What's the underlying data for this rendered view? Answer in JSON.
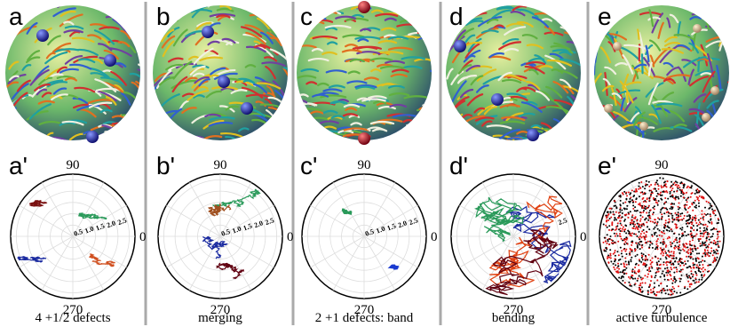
{
  "panels": [
    {
      "label": "a",
      "polar_label": "a'",
      "caption": "4 +1/2 defects",
      "angle_labels": [
        "90",
        "0",
        "270"
      ],
      "radial_labels": [
        "0.5",
        "1.0",
        "1.5",
        "2.0",
        "2.5"
      ]
    },
    {
      "label": "b",
      "polar_label": "b'",
      "caption": "merging",
      "angle_labels": [
        "90",
        "0",
        "270"
      ],
      "radial_labels": [
        "0.5",
        "1.0",
        "1.5",
        "2.0",
        "2.5"
      ]
    },
    {
      "label": "c",
      "polar_label": "c'",
      "caption": "2 +1 defects: band",
      "angle_labels": [
        "90",
        "0",
        "270"
      ],
      "radial_labels": [
        "0.5",
        "1.0",
        "1.5",
        "2.0",
        "2.5"
      ]
    },
    {
      "label": "d",
      "polar_label": "d'",
      "caption": "bending",
      "angle_labels": [
        "0",
        "270"
      ],
      "radial_labels": [
        "2.5"
      ]
    },
    {
      "label": "e",
      "polar_label": "e'",
      "caption": "active turbulence",
      "angle_labels": [
        "90",
        "270"
      ],
      "radial_labels": []
    }
  ]
}
